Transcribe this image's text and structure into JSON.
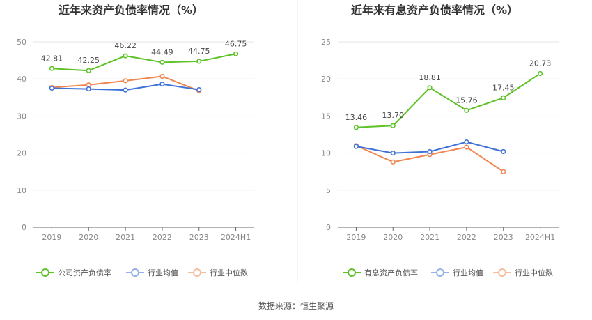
{
  "source": "数据来源：恒生聚源",
  "chart_data": [
    {
      "type": "line",
      "title": "近年来资产负债率情况（%）",
      "categories": [
        "2019",
        "2020",
        "2021",
        "2022",
        "2023",
        "2024H1"
      ],
      "ylim": [
        0,
        50
      ],
      "yticks": [
        0,
        10,
        20,
        30,
        40,
        50
      ],
      "grid": true,
      "legend": "bottom",
      "series": [
        {
          "name": "公司资产负债率",
          "color": "#5dc226",
          "values": [
            42.81,
            42.25,
            46.22,
            44.49,
            44.75,
            46.75
          ],
          "labels": [
            "42.81",
            "42.25",
            "46.22",
            "44.49",
            "44.75",
            "46.75"
          ]
        },
        {
          "name": "行业均值",
          "color": "#3f72d6",
          "values": [
            37.5,
            37.3,
            37.0,
            38.6,
            37.1,
            null
          ]
        },
        {
          "name": "行业中位数",
          "color": "#ef8551",
          "values": [
            37.7,
            38.4,
            39.5,
            40.7,
            36.8,
            null
          ]
        }
      ]
    },
    {
      "type": "line",
      "title": "近年来有息资产负债率情况（%）",
      "categories": [
        "2019",
        "2020",
        "2021",
        "2022",
        "2023",
        "2024H1"
      ],
      "ylim": [
        0,
        25
      ],
      "yticks": [
        0,
        5,
        10,
        15,
        20,
        25
      ],
      "grid": true,
      "legend": "bottom",
      "series": [
        {
          "name": "有息资产负债率",
          "color": "#5dc226",
          "values": [
            13.46,
            13.7,
            18.81,
            15.76,
            17.45,
            20.73
          ],
          "labels": [
            "13.46",
            "13.70",
            "18.81",
            "15.76",
            "17.45",
            "20.73"
          ]
        },
        {
          "name": "行业均值",
          "color": "#3f72d6",
          "values": [
            10.9,
            10.0,
            10.2,
            11.5,
            10.2,
            null
          ]
        },
        {
          "name": "行业中位数",
          "color": "#ef8551",
          "values": [
            11.0,
            8.8,
            9.8,
            10.8,
            7.5,
            null
          ]
        }
      ]
    }
  ]
}
